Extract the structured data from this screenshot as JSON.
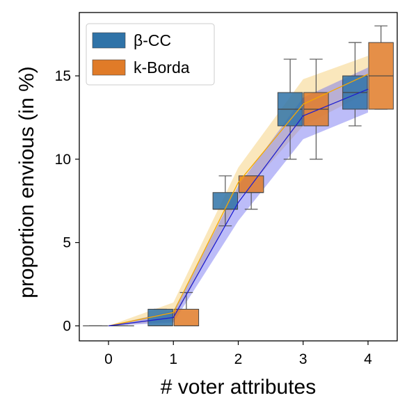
{
  "chart_data": {
    "type": "box",
    "xlabel": "# voter attributes",
    "ylabel": "proportion envious (in %)",
    "x": [
      0,
      1,
      2,
      3,
      4
    ],
    "xlim": [
      -0.45,
      4.45
    ],
    "ylim": [
      -0.9,
      18.8
    ],
    "xticks": [
      "0",
      "1",
      "2",
      "3",
      "4"
    ],
    "yticks": [
      0,
      5,
      10,
      15
    ],
    "legend_position": "top-left",
    "series": [
      {
        "name": "β-CC",
        "color": "#2f73a8",
        "line_color": "#1f1fd0",
        "band_color": "#6a6af0",
        "mean": [
          0,
          0.5,
          7.4,
          12.6,
          14.2
        ],
        "band_low": [
          0,
          0.2,
          6.3,
          11.2,
          12.8
        ],
        "band_high": [
          0,
          0.9,
          8.4,
          13.7,
          15.5
        ],
        "boxes": [
          {
            "x": 0,
            "min": 0,
            "q1": 0,
            "median": 0,
            "q3": 0,
            "max": 0
          },
          {
            "x": 1,
            "min": 0,
            "q1": 0,
            "median": 0,
            "q3": 1,
            "max": 1
          },
          {
            "x": 2,
            "min": 6,
            "q1": 7,
            "median": 7,
            "q3": 8,
            "max": 9
          },
          {
            "x": 3,
            "min": 10,
            "q1": 12,
            "median": 13,
            "q3": 14,
            "max": 16
          },
          {
            "x": 4,
            "min": 12,
            "q1": 13,
            "median": 14,
            "q3": 15,
            "max": 17
          }
        ]
      },
      {
        "name": "k-Borda",
        "color": "#e07b28",
        "line_color": "#f5a800",
        "band_color": "#f6cf7a",
        "mean": [
          0,
          0.8,
          8.6,
          13.3,
          15.1
        ],
        "band_low": [
          0,
          0.3,
          7.6,
          12.0,
          14.0
        ],
        "band_high": [
          0,
          1.4,
          9.5,
          14.8,
          16.2
        ],
        "boxes": [
          {
            "x": 0,
            "min": 0,
            "q1": 0,
            "median": 0,
            "q3": 0,
            "max": 0
          },
          {
            "x": 1,
            "min": 0,
            "q1": 0,
            "median": 0,
            "q3": 1,
            "max": 2
          },
          {
            "x": 2,
            "min": 7,
            "q1": 8,
            "median": 8,
            "q3": 9,
            "max": 9
          },
          {
            "x": 3,
            "min": 10,
            "q1": 12,
            "median": 13,
            "q3": 14,
            "max": 16
          },
          {
            "x": 4,
            "min": 13,
            "q1": 13,
            "median": 15,
            "q3": 17,
            "max": 18
          }
        ]
      }
    ]
  }
}
